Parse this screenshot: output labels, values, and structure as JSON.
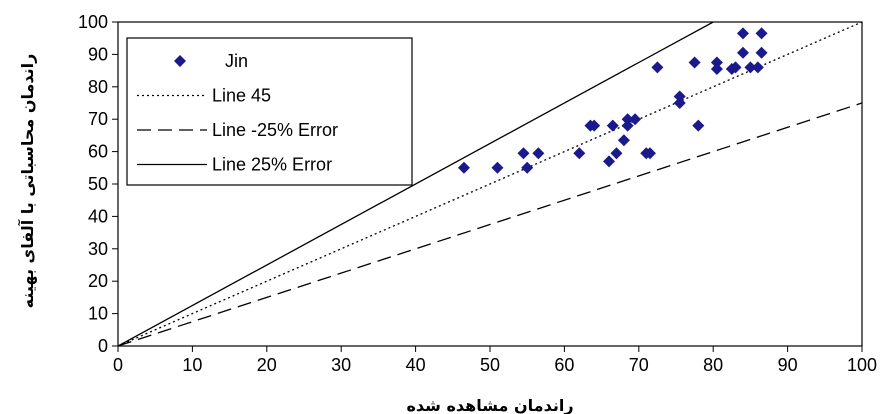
{
  "chart_data": {
    "type": "scatter",
    "xlabel": "راندمان مشاهده شده",
    "ylabel": "راندمان محاسباتی با آلفای بهینه",
    "xlim": [
      0,
      100
    ],
    "ylim": [
      0,
      100
    ],
    "xticks": [
      "0",
      "10",
      "20",
      "30",
      "40",
      "50",
      "60",
      "70",
      "80",
      "90",
      "100"
    ],
    "yticks": [
      "0",
      "10",
      "20",
      "30",
      "40",
      "50",
      "60",
      "70",
      "80",
      "90",
      "100"
    ],
    "grid": false,
    "legend_position": "top-left",
    "series": [
      {
        "name": "Jin",
        "kind": "scatter",
        "marker": "diamond",
        "color": "#1a1a8c",
        "points": [
          [
            46.5,
            55
          ],
          [
            51,
            55
          ],
          [
            54.5,
            59.5
          ],
          [
            55,
            55
          ],
          [
            56.5,
            59.5
          ],
          [
            62,
            59.5
          ],
          [
            63.5,
            68
          ],
          [
            64,
            68
          ],
          [
            66,
            57
          ],
          [
            66.5,
            68
          ],
          [
            67,
            59.5
          ],
          [
            68,
            63.5
          ],
          [
            68.5,
            68
          ],
          [
            68.5,
            70
          ],
          [
            69.5,
            70
          ],
          [
            71,
            59.5
          ],
          [
            71.5,
            59.5
          ],
          [
            72.5,
            86
          ],
          [
            75.5,
            75
          ],
          [
            75.5,
            77
          ],
          [
            77.5,
            87.5
          ],
          [
            78,
            68
          ],
          [
            80.5,
            85.5
          ],
          [
            80.5,
            87.5
          ],
          [
            82.5,
            85.5
          ],
          [
            83,
            86
          ],
          [
            84,
            90.5
          ],
          [
            84,
            96.5
          ],
          [
            85,
            86
          ],
          [
            86,
            86
          ],
          [
            86.5,
            90.5
          ],
          [
            86.5,
            96.5
          ]
        ]
      },
      {
        "name": "Line 45",
        "kind": "line",
        "dash": "dotted",
        "color": "#000000",
        "points": [
          [
            0,
            0
          ],
          [
            100,
            100
          ]
        ]
      },
      {
        "name": "Line -25% Error",
        "kind": "line",
        "dash": "dashed",
        "color": "#000000",
        "points": [
          [
            0,
            0
          ],
          [
            100,
            75
          ]
        ]
      },
      {
        "name": "Line 25% Error",
        "kind": "line",
        "dash": "solid",
        "color": "#000000",
        "points": [
          [
            0,
            0
          ],
          [
            80,
            100
          ]
        ]
      }
    ]
  }
}
